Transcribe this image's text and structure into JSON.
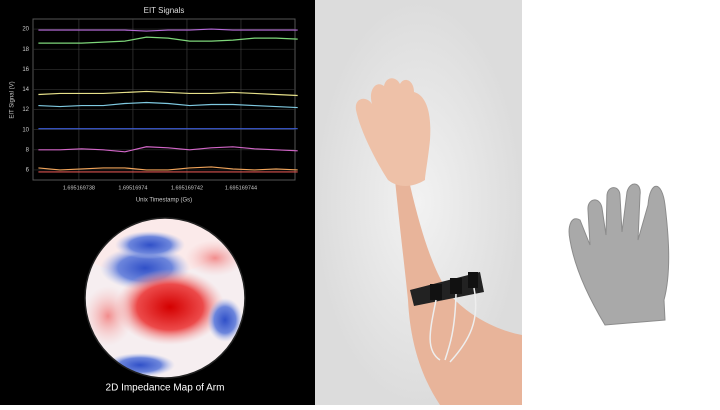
{
  "chart_data": {
    "type": "line",
    "title": "EIT Signals",
    "x_label": "Unix Timestamp (Gs)",
    "y_label": "EIT Signal (V)",
    "x": [
      1.6951697365,
      1.6951697373,
      1.6951697381,
      1.6951697389,
      1.6951697397,
      1.6951697405,
      1.6951697413,
      1.6951697421,
      1.6951697429,
      1.6951697437,
      1.6951697445,
      1.6951697453,
      1.6951697461
    ],
    "series": [
      {
        "color": "#b56ad8",
        "values": [
          19.9,
          19.9,
          19.9,
          19.9,
          19.9,
          19.8,
          19.9,
          19.9,
          20,
          19.9,
          19.9,
          19.9,
          19.9
        ]
      },
      {
        "color": "#7ed67a",
        "values": [
          18.6,
          18.6,
          18.6,
          18.7,
          18.8,
          19.2,
          19.1,
          18.8,
          18.8,
          18.9,
          19.1,
          19.1,
          19.0
        ]
      },
      {
        "color": "#e6e08a",
        "values": [
          13.5,
          13.6,
          13.6,
          13.6,
          13.7,
          13.8,
          13.7,
          13.6,
          13.6,
          13.7,
          13.6,
          13.5,
          13.4
        ]
      },
      {
        "color": "#7fc9e0",
        "values": [
          12.4,
          12.3,
          12.4,
          12.4,
          12.6,
          12.7,
          12.6,
          12.4,
          12.5,
          12.5,
          12.4,
          12.3,
          12.2
        ]
      },
      {
        "color": "#3b5bd6",
        "values": [
          10.1,
          10.1,
          10.1,
          10.1,
          10.1,
          10.1,
          10.1,
          10.1,
          10.1,
          10.1,
          10.1,
          10.1,
          10.1
        ]
      },
      {
        "color": "#d266c8",
        "values": [
          8.0,
          8.0,
          8.1,
          8.0,
          7.8,
          8.3,
          8.2,
          8.0,
          8.2,
          8.3,
          8.1,
          8.0,
          7.9
        ]
      },
      {
        "color": "#f0a45a",
        "values": [
          6.2,
          6.0,
          6.1,
          6.2,
          6.2,
          6.0,
          6.0,
          6.2,
          6.3,
          6.1,
          6.0,
          6.1,
          6.0
        ]
      },
      {
        "color": "#d9534f",
        "values": [
          5.8,
          5.8,
          5.8,
          5.8,
          5.8,
          5.8,
          5.8,
          5.8,
          5.8,
          5.8,
          5.8,
          5.8,
          5.8
        ]
      }
    ],
    "xlim": [
      1.6951697363,
      1.695169746
    ],
    "xticks": [
      1.695169738,
      1.69516974,
      1.695169742,
      1.695169744
    ],
    "ylim": [
      5,
      21
    ],
    "yticks": [
      6,
      8,
      10,
      12,
      14,
      16,
      18,
      20
    ],
    "grid": true
  },
  "map_caption": "2D Impedance Map of Arm"
}
